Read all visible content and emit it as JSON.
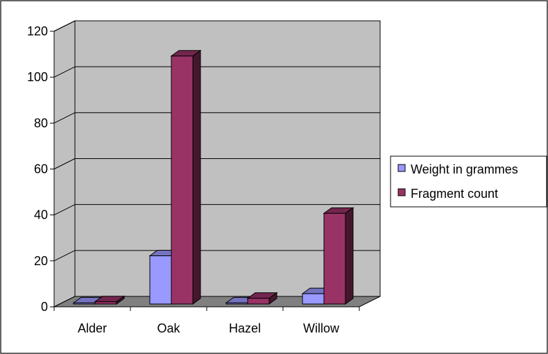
{
  "chart_data": {
    "type": "bar",
    "title": "",
    "xlabel": "",
    "ylabel": "",
    "categories": [
      "Alder",
      "Oak",
      "Hazel",
      "Willow"
    ],
    "series": [
      {
        "name": "Weight in grammes",
        "values": [
          0.5,
          21,
          0.5,
          4.5
        ]
      },
      {
        "name": "Fragment count",
        "values": [
          1,
          108,
          2.5,
          39.5
        ]
      }
    ],
    "ylim": [
      0,
      120
    ],
    "yticks": [
      "0",
      "20",
      "40",
      "60",
      "80",
      "100",
      "120"
    ],
    "grid": true,
    "legend_position": "right",
    "three_d": true,
    "colors": {
      "series": [
        "#9999ff",
        "#993366"
      ],
      "wall": "#c0c0c0",
      "floor": "#808080",
      "grid": "#000000"
    }
  }
}
